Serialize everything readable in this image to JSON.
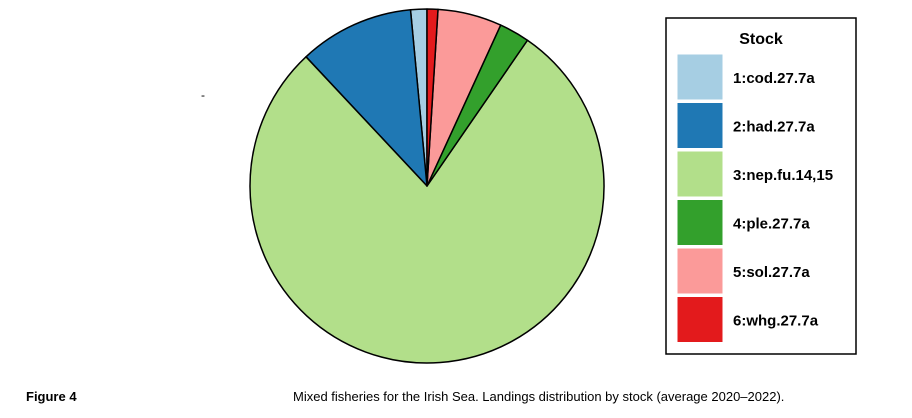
{
  "chart_data": {
    "type": "pie",
    "legend_title": "Stock",
    "legend_position": "right",
    "slices": [
      {
        "label": "1:cod.27.7a",
        "value": 1.5,
        "color": "#a6cee3"
      },
      {
        "label": "2:had.27.7a",
        "value": 10.6,
        "color": "#1f78b4"
      },
      {
        "label": "3:nep.fu.14,15",
        "value": 79.2,
        "color": "#b2df8a"
      },
      {
        "label": "4:ple.27.7a",
        "value": 2.8,
        "color": "#33a02c"
      },
      {
        "label": "5:sol.27.7a",
        "value": 5.9,
        "color": "#fb9a99"
      },
      {
        "label": "6:whg.27.7a",
        "value": 1.0,
        "color": "#e31a1c"
      }
    ]
  },
  "stray_mark": "-",
  "caption": {
    "label": "Figure 4",
    "text": "Mixed fisheries for the Irish Sea. Landings distribution by stock (average 2020–2022)."
  }
}
